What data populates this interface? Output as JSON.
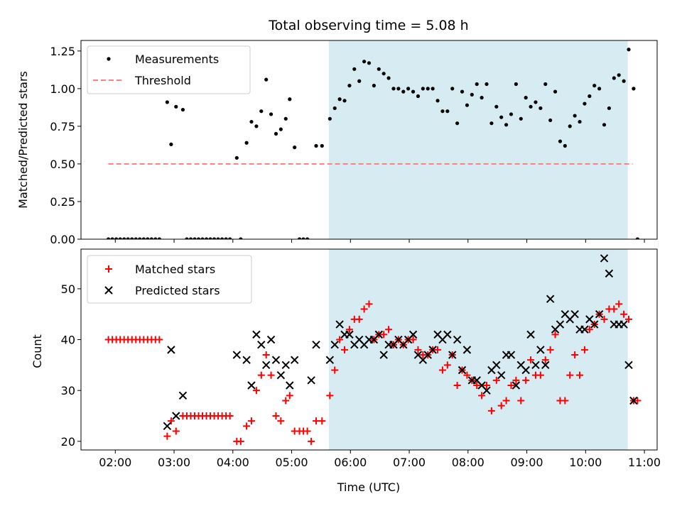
{
  "chart_data": {
    "type": "scatter",
    "title": "Total observing time = 5.08 h",
    "xlabel": "Time (UTC)",
    "x_ticks": [
      "02:00",
      "03:00",
      "04:00",
      "05:00",
      "06:00",
      "07:00",
      "08:00",
      "09:00",
      "10:00",
      "11:00"
    ],
    "xlim": [
      "01:25",
      "11:13"
    ],
    "shaded_region": [
      "05:38",
      "10:43"
    ],
    "colors": {
      "shade": "#add8e6",
      "matched": "#ff0000",
      "predicted": "#000000",
      "threshold": "#ff8080",
      "measurement": "#000000"
    },
    "top": {
      "ylabel": "Matched/Predicted stars",
      "ylim": [
        0,
        1.32
      ],
      "y_ticks": [
        "0.00",
        "0.25",
        "0.50",
        "0.75",
        "1.00",
        "1.25"
      ],
      "threshold": 0.5,
      "threshold_range": [
        "01:53",
        "10:48"
      ],
      "legend": {
        "measurements": "Measurements",
        "threshold": "Threshold",
        "placement": "upper-left"
      },
      "points": [
        [
          "01:53",
          0
        ],
        [
          "01:57",
          0
        ],
        [
          "02:01",
          0
        ],
        [
          "02:05",
          0
        ],
        [
          "02:09",
          0
        ],
        [
          "02:13",
          0
        ],
        [
          "02:17",
          0
        ],
        [
          "02:21",
          0
        ],
        [
          "02:25",
          0
        ],
        [
          "02:29",
          0
        ],
        [
          "02:33",
          0
        ],
        [
          "02:37",
          0
        ],
        [
          "02:41",
          0
        ],
        [
          "02:45",
          0
        ],
        [
          "02:53",
          0.91
        ],
        [
          "02:57",
          0.63
        ],
        [
          "03:02",
          0.88
        ],
        [
          "03:09",
          0.86
        ],
        [
          "03:13",
          0
        ],
        [
          "03:17",
          0
        ],
        [
          "03:21",
          0
        ],
        [
          "03:25",
          0
        ],
        [
          "03:29",
          0
        ],
        [
          "03:33",
          0
        ],
        [
          "03:37",
          0
        ],
        [
          "03:41",
          0
        ],
        [
          "03:45",
          0
        ],
        [
          "03:49",
          0
        ],
        [
          "03:53",
          0
        ],
        [
          "03:57",
          0
        ],
        [
          "04:04",
          0.54
        ],
        [
          "04:08",
          0
        ],
        [
          "04:14",
          0.64
        ],
        [
          "04:19",
          0.78
        ],
        [
          "04:24",
          0.75
        ],
        [
          "04:29",
          0.85
        ],
        [
          "04:34",
          1.06
        ],
        [
          "04:39",
          0.83
        ],
        [
          "04:44",
          0.7
        ],
        [
          "04:49",
          0.73
        ],
        [
          "04:54",
          0.8
        ],
        [
          "04:58",
          0.93
        ],
        [
          "05:03",
          0.61
        ],
        [
          "05:08",
          0
        ],
        [
          "05:12",
          0
        ],
        [
          "05:16",
          0
        ],
        [
          "05:25",
          0.62
        ],
        [
          "05:31",
          0.62
        ],
        [
          "05:39",
          0.8
        ],
        [
          "05:44",
          0.87
        ],
        [
          "05:49",
          0.93
        ],
        [
          "05:54",
          0.92
        ],
        [
          "05:59",
          1.02
        ],
        [
          "06:04",
          1.13
        ],
        [
          "06:09",
          1.05
        ],
        [
          "06:14",
          1.18
        ],
        [
          "06:19",
          1.17
        ],
        [
          "06:24",
          1.02
        ],
        [
          "06:29",
          1.13
        ],
        [
          "06:34",
          1.1
        ],
        [
          "06:39",
          1.07
        ],
        [
          "06:44",
          1.0
        ],
        [
          "06:49",
          1.0
        ],
        [
          "06:54",
          0.98
        ],
        [
          "06:59",
          1.0
        ],
        [
          "07:04",
          0.98
        ],
        [
          "07:09",
          0.95
        ],
        [
          "07:14",
          1.0
        ],
        [
          "07:19",
          1.0
        ],
        [
          "07:24",
          1.0
        ],
        [
          "07:29",
          0.92
        ],
        [
          "07:34",
          0.85
        ],
        [
          "07:39",
          0.85
        ],
        [
          "07:44",
          1.0
        ],
        [
          "07:49",
          0.77
        ],
        [
          "07:54",
          0.98
        ],
        [
          "07:59",
          0.89
        ],
        [
          "08:04",
          0.96
        ],
        [
          "08:09",
          1.03
        ],
        [
          "08:14",
          0.94
        ],
        [
          "08:19",
          1.03
        ],
        [
          "08:24",
          0.77
        ],
        [
          "08:29",
          0.88
        ],
        [
          "08:34",
          0.81
        ],
        [
          "08:39",
          0.76
        ],
        [
          "08:44",
          0.83
        ],
        [
          "08:49",
          1.03
        ],
        [
          "08:54",
          0.8
        ],
        [
          "08:59",
          0.94
        ],
        [
          "09:04",
          0.88
        ],
        [
          "09:09",
          0.91
        ],
        [
          "09:14",
          0.87
        ],
        [
          "09:19",
          1.03
        ],
        [
          "09:24",
          0.79
        ],
        [
          "09:29",
          0.98
        ],
        [
          "09:34",
          0.65
        ],
        [
          "09:39",
          0.62
        ],
        [
          "09:44",
          0.75
        ],
        [
          "09:49",
          0.82
        ],
        [
          "09:54",
          0.78
        ],
        [
          "09:59",
          0.9
        ],
        [
          "10:04",
          0.95
        ],
        [
          "10:09",
          1.02
        ],
        [
          "10:14",
          1.0
        ],
        [
          "10:19",
          0.76
        ],
        [
          "10:24",
          0.87
        ],
        [
          "10:29",
          1.07
        ],
        [
          "10:34",
          1.09
        ],
        [
          "10:39",
          1.05
        ],
        [
          "10:44",
          1.26
        ],
        [
          "10:49",
          1.0
        ],
        [
          "10:53",
          0
        ]
      ]
    },
    "bottom": {
      "ylabel": "Count",
      "ylim": [
        18.3,
        57.8
      ],
      "y_ticks": [
        "20",
        "30",
        "40",
        "50"
      ],
      "legend": {
        "matched": "Matched stars",
        "predicted": "Predicted stars",
        "placement": "upper-left"
      },
      "matched": [
        [
          "01:53",
          40
        ],
        [
          "01:57",
          40
        ],
        [
          "02:01",
          40
        ],
        [
          "02:05",
          40
        ],
        [
          "02:09",
          40
        ],
        [
          "02:13",
          40
        ],
        [
          "02:17",
          40
        ],
        [
          "02:21",
          40
        ],
        [
          "02:25",
          40
        ],
        [
          "02:29",
          40
        ],
        [
          "02:33",
          40
        ],
        [
          "02:37",
          40
        ],
        [
          "02:41",
          40
        ],
        [
          "02:45",
          40
        ],
        [
          "02:53",
          21
        ],
        [
          "02:57",
          24
        ],
        [
          "03:02",
          22
        ],
        [
          "03:09",
          25
        ],
        [
          "03:13",
          25
        ],
        [
          "03:17",
          25
        ],
        [
          "03:21",
          25
        ],
        [
          "03:25",
          25
        ],
        [
          "03:29",
          25
        ],
        [
          "03:33",
          25
        ],
        [
          "03:37",
          25
        ],
        [
          "03:41",
          25
        ],
        [
          "03:45",
          25
        ],
        [
          "03:49",
          25
        ],
        [
          "03:53",
          25
        ],
        [
          "03:57",
          25
        ],
        [
          "04:04",
          20
        ],
        [
          "04:08",
          20
        ],
        [
          "04:14",
          23
        ],
        [
          "04:19",
          24
        ],
        [
          "04:24",
          30
        ],
        [
          "04:29",
          33
        ],
        [
          "04:34",
          37
        ],
        [
          "04:39",
          33
        ],
        [
          "04:44",
          25
        ],
        [
          "04:49",
          24
        ],
        [
          "04:54",
          28
        ],
        [
          "04:58",
          29
        ],
        [
          "05:03",
          22
        ],
        [
          "05:08",
          22
        ],
        [
          "05:12",
          22
        ],
        [
          "05:16",
          22
        ],
        [
          "05:20",
          20
        ],
        [
          "05:25",
          24
        ],
        [
          "05:31",
          24
        ],
        [
          "05:39",
          29
        ],
        [
          "05:44",
          34
        ],
        [
          "05:49",
          40
        ],
        [
          "05:54",
          38
        ],
        [
          "05:59",
          42
        ],
        [
          "06:04",
          44
        ],
        [
          "06:09",
          44
        ],
        [
          "06:14",
          46
        ],
        [
          "06:19",
          47
        ],
        [
          "06:24",
          40
        ],
        [
          "06:29",
          41
        ],
        [
          "06:34",
          41
        ],
        [
          "06:39",
          42
        ],
        [
          "06:44",
          39
        ],
        [
          "06:49",
          40
        ],
        [
          "06:54",
          39
        ],
        [
          "06:59",
          40
        ],
        [
          "07:04",
          40
        ],
        [
          "07:09",
          38
        ],
        [
          "07:14",
          37
        ],
        [
          "07:19",
          37
        ],
        [
          "07:24",
          38
        ],
        [
          "07:29",
          38
        ],
        [
          "07:34",
          34
        ],
        [
          "07:39",
          35
        ],
        [
          "07:44",
          37
        ],
        [
          "07:49",
          31
        ],
        [
          "07:54",
          34
        ],
        [
          "07:59",
          33
        ],
        [
          "08:04",
          32
        ],
        [
          "08:09",
          31
        ],
        [
          "08:14",
          29
        ],
        [
          "08:19",
          31
        ],
        [
          "08:24",
          26
        ],
        [
          "08:29",
          32
        ],
        [
          "08:34",
          27
        ],
        [
          "08:39",
          28
        ],
        [
          "08:44",
          31
        ],
        [
          "08:49",
          32
        ],
        [
          "08:54",
          28
        ],
        [
          "08:59",
          32
        ],
        [
          "09:04",
          36
        ],
        [
          "09:09",
          33
        ],
        [
          "09:14",
          33
        ],
        [
          "09:19",
          36
        ],
        [
          "09:24",
          38
        ],
        [
          "09:29",
          41
        ],
        [
          "09:34",
          28
        ],
        [
          "09:39",
          28
        ],
        [
          "09:44",
          33
        ],
        [
          "09:49",
          37
        ],
        [
          "09:54",
          33
        ],
        [
          "09:59",
          38
        ],
        [
          "10:04",
          42
        ],
        [
          "10:09",
          43
        ],
        [
          "10:14",
          45
        ],
        [
          "10:19",
          44
        ],
        [
          "10:24",
          46
        ],
        [
          "10:29",
          46
        ],
        [
          "10:34",
          47
        ],
        [
          "10:39",
          45
        ],
        [
          "10:44",
          44
        ],
        [
          "10:49",
          28
        ],
        [
          "10:53",
          28
        ]
      ],
      "predicted": [
        [
          "02:53",
          23
        ],
        [
          "02:57",
          38
        ],
        [
          "03:02",
          25
        ],
        [
          "03:09",
          29
        ],
        [
          "04:04",
          37
        ],
        [
          "04:14",
          36
        ],
        [
          "04:19",
          31
        ],
        [
          "04:24",
          41
        ],
        [
          "04:29",
          39
        ],
        [
          "04:34",
          35
        ],
        [
          "04:39",
          40
        ],
        [
          "04:44",
          36
        ],
        [
          "04:49",
          33
        ],
        [
          "04:54",
          35
        ],
        [
          "04:58",
          31
        ],
        [
          "05:03",
          36
        ],
        [
          "05:20",
          32
        ],
        [
          "05:25",
          39
        ],
        [
          "05:39",
          36
        ],
        [
          "05:44",
          39
        ],
        [
          "05:49",
          43
        ],
        [
          "05:54",
          41
        ],
        [
          "05:59",
          41
        ],
        [
          "06:04",
          39
        ],
        [
          "06:09",
          40
        ],
        [
          "06:14",
          39
        ],
        [
          "06:19",
          40
        ],
        [
          "06:24",
          40
        ],
        [
          "06:29",
          41
        ],
        [
          "06:34",
          37
        ],
        [
          "06:39",
          39
        ],
        [
          "06:44",
          39
        ],
        [
          "06:49",
          40
        ],
        [
          "06:54",
          39
        ],
        [
          "06:59",
          40
        ],
        [
          "07:04",
          41
        ],
        [
          "07:09",
          37
        ],
        [
          "07:14",
          36
        ],
        [
          "07:19",
          37
        ],
        [
          "07:24",
          38
        ],
        [
          "07:29",
          41
        ],
        [
          "07:34",
          40
        ],
        [
          "07:39",
          41
        ],
        [
          "07:44",
          37
        ],
        [
          "07:49",
          40
        ],
        [
          "07:54",
          34
        ],
        [
          "07:59",
          38
        ],
        [
          "08:04",
          32
        ],
        [
          "08:09",
          32
        ],
        [
          "08:14",
          31
        ],
        [
          "08:19",
          30
        ],
        [
          "08:24",
          34
        ],
        [
          "08:29",
          35
        ],
        [
          "08:34",
          33
        ],
        [
          "08:39",
          37
        ],
        [
          "08:44",
          37
        ],
        [
          "08:49",
          31
        ],
        [
          "08:54",
          35
        ],
        [
          "08:59",
          34
        ],
        [
          "09:04",
          41
        ],
        [
          "09:09",
          35
        ],
        [
          "09:14",
          38
        ],
        [
          "09:19",
          35
        ],
        [
          "09:24",
          48
        ],
        [
          "09:29",
          42
        ],
        [
          "09:34",
          43
        ],
        [
          "09:39",
          45
        ],
        [
          "09:44",
          44
        ],
        [
          "09:49",
          45
        ],
        [
          "09:54",
          42
        ],
        [
          "09:59",
          42
        ],
        [
          "10:04",
          44
        ],
        [
          "10:09",
          43
        ],
        [
          "10:14",
          45
        ],
        [
          "10:19",
          56
        ],
        [
          "10:24",
          53
        ],
        [
          "10:29",
          43
        ],
        [
          "10:34",
          43
        ],
        [
          "10:39",
          43
        ],
        [
          "10:44",
          35
        ],
        [
          "10:49",
          28
        ]
      ]
    }
  }
}
